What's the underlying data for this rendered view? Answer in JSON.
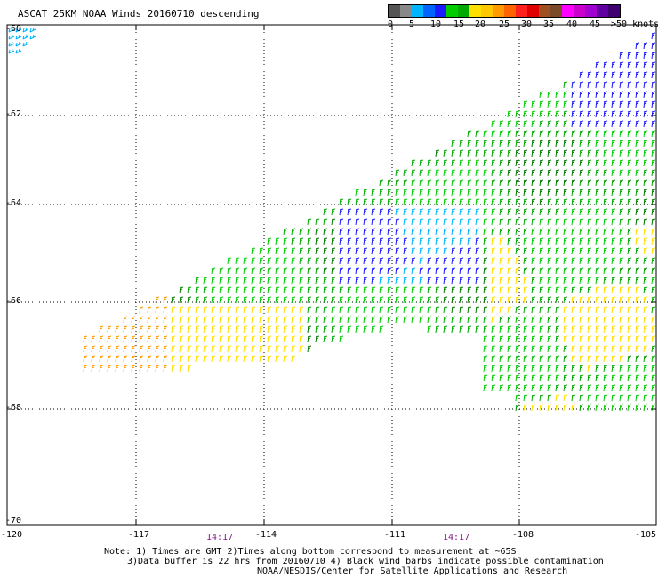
{
  "header": {
    "title": "ASCAT 25KM NOAA Winds 20160710 descending"
  },
  "legend": {
    "colors": [
      "#555555",
      "#888888",
      "#00b4ff",
      "#0064ff",
      "#1a1aff",
      "#00cc00",
      "#00aa00",
      "#ffe000",
      "#ffc800",
      "#ff9a00",
      "#ff6400",
      "#ff2020",
      "#e00000",
      "#a05020",
      "#7a4a2a",
      "#ff00ff",
      "#cc00cc",
      "#a000d0",
      "#6000a0",
      "#400070"
    ],
    "labels": [
      "0",
      "5",
      "10",
      "15",
      "20",
      "25",
      "30",
      "35",
      "40",
      "45",
      ">50 knots"
    ]
  },
  "map": {
    "lat_labels": [
      "-60",
      "-62",
      "-64",
      "-66",
      "-68",
      "-70"
    ],
    "lon_labels": [
      "-120",
      "-117",
      "-114",
      "-111",
      "-108",
      "-105"
    ],
    "times": [
      "14:17",
      "14:17"
    ]
  },
  "notes": {
    "line1": "Note: 1) Times are GMT 2)Times along bottom correspond to measurement at ~65S",
    "line2": "3)Data buffer is 22 hrs from 20160710 4) Black wind barbs indicate possible contamination",
    "line3": "NOAA/NESDIS/Center for Satellite Applications and Research"
  }
}
